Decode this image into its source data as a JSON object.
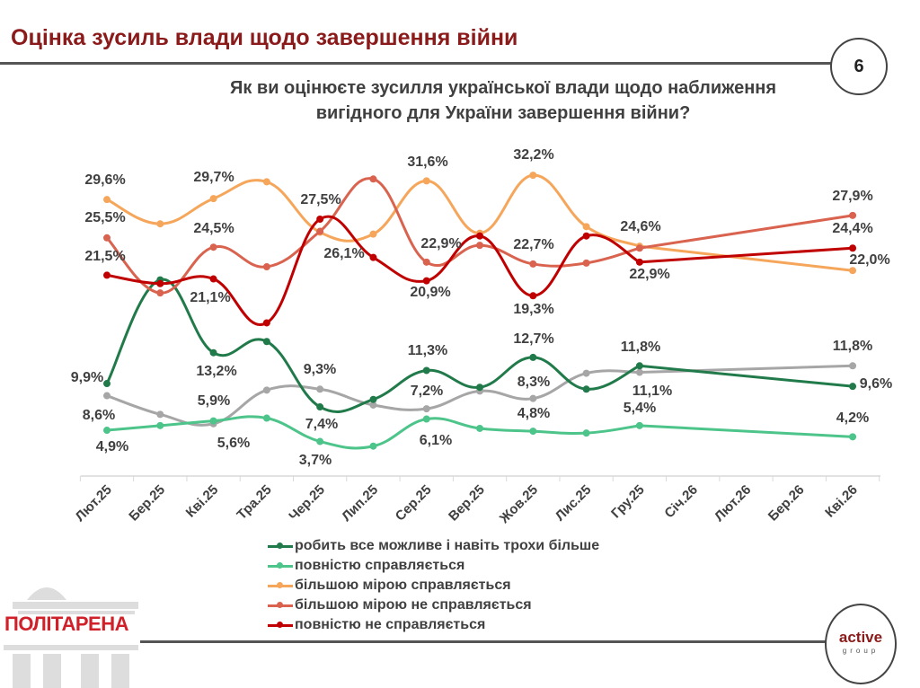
{
  "header": {
    "title": "Оцінка зусиль влади щодо завершення війни",
    "page_number": "6",
    "question_line1": "Як ви оцінюєте зусилля української влади щодо наближення",
    "question_line2": "вигідного для України завершення війни?"
  },
  "logos": {
    "left": "ПОЛІТАРЕНА",
    "right_main": "active",
    "right_sub": "group"
  },
  "chart_data": {
    "type": "line",
    "smooth": true,
    "categories": [
      "Лют.25",
      "Бер.25",
      "Кві.25",
      "Тра.25",
      "Чер.25",
      "Лип.25",
      "Сер.25",
      "Вер.25",
      "Жов.25",
      "Лис.25",
      "Гру.25",
      "Січ.26",
      "Лют.26",
      "Бер.26",
      "Кві.26"
    ],
    "ylim": [
      0,
      35
    ],
    "grid": false,
    "legend_position": "bottom",
    "series": [
      {
        "name": "робить все можливе і навіть трохи більше",
        "color": "#217a4a",
        "values": [
          9.9,
          21.0,
          13.2,
          14.4,
          7.4,
          8.2,
          11.3,
          9.5,
          12.7,
          9.3,
          11.8,
          null,
          null,
          null,
          9.6
        ],
        "labels": [
          "9,9%",
          null,
          "13,2%",
          null,
          "7,4%",
          null,
          "11,3%",
          null,
          "12,7%",
          null,
          "11,8%",
          null,
          null,
          null,
          "9,6%"
        ]
      },
      {
        "name": "повністю справляється",
        "color": "#4dc48a",
        "values": [
          4.9,
          5.4,
          5.9,
          6.2,
          3.7,
          3.2,
          6.1,
          5.1,
          4.8,
          4.6,
          5.4,
          null,
          null,
          null,
          4.2
        ],
        "labels": [
          "4,9%",
          null,
          "5,9%",
          null,
          "3,7%",
          null,
          "6,1%",
          null,
          "4,8%",
          null,
          "5,4%",
          null,
          null,
          null,
          "4,2%"
        ]
      },
      {
        "name": "більшою мірою справляється",
        "color": "#f5a65b",
        "values": [
          29.6,
          27.0,
          29.7,
          31.5,
          26.1,
          25.9,
          31.6,
          26.0,
          32.2,
          26.7,
          24.6,
          null,
          null,
          null,
          22.0
        ],
        "labels": [
          "29,6%",
          null,
          "29,7%",
          null,
          "26,1%",
          null,
          "31,6%",
          null,
          "32,2%",
          null,
          "24,6%",
          null,
          null,
          null,
          "22,0%"
        ]
      },
      {
        "name": "більшою мірою не справляється",
        "color": "#d9634f",
        "values": [
          25.5,
          19.6,
          24.5,
          22.4,
          26.2,
          31.8,
          22.9,
          24.7,
          22.7,
          22.8,
          24.4,
          null,
          null,
          null,
          27.9
        ],
        "labels": [
          "25,5%",
          null,
          "24,5%",
          null,
          null,
          null,
          "22,9%",
          null,
          "22,7%",
          null,
          null,
          null,
          null,
          null,
          "27,9%"
        ]
      },
      {
        "name": "повністю не справляється",
        "color": "#c00000",
        "values": [
          21.5,
          20.6,
          21.1,
          16.4,
          27.5,
          23.4,
          20.9,
          25.7,
          19.3,
          25.7,
          22.9,
          null,
          null,
          null,
          24.4
        ],
        "labels": [
          "21,5%",
          null,
          "21,1%",
          null,
          "27,5%",
          null,
          "20,9%",
          null,
          "19,3%",
          null,
          "22,9%",
          null,
          null,
          null,
          "24,4%"
        ]
      },
      {
        "name": "",
        "color": "#a6a6a6",
        "values": [
          8.6,
          6.6,
          5.6,
          9.2,
          9.3,
          7.6,
          7.2,
          9.1,
          8.3,
          11.0,
          11.1,
          null,
          null,
          null,
          11.8
        ],
        "labels": [
          "8,6%",
          null,
          "5,6%",
          null,
          "9,3%",
          null,
          "7,2%",
          null,
          "8,3%",
          null,
          "11,1%",
          null,
          null,
          null,
          "11,8%"
        ]
      }
    ]
  }
}
